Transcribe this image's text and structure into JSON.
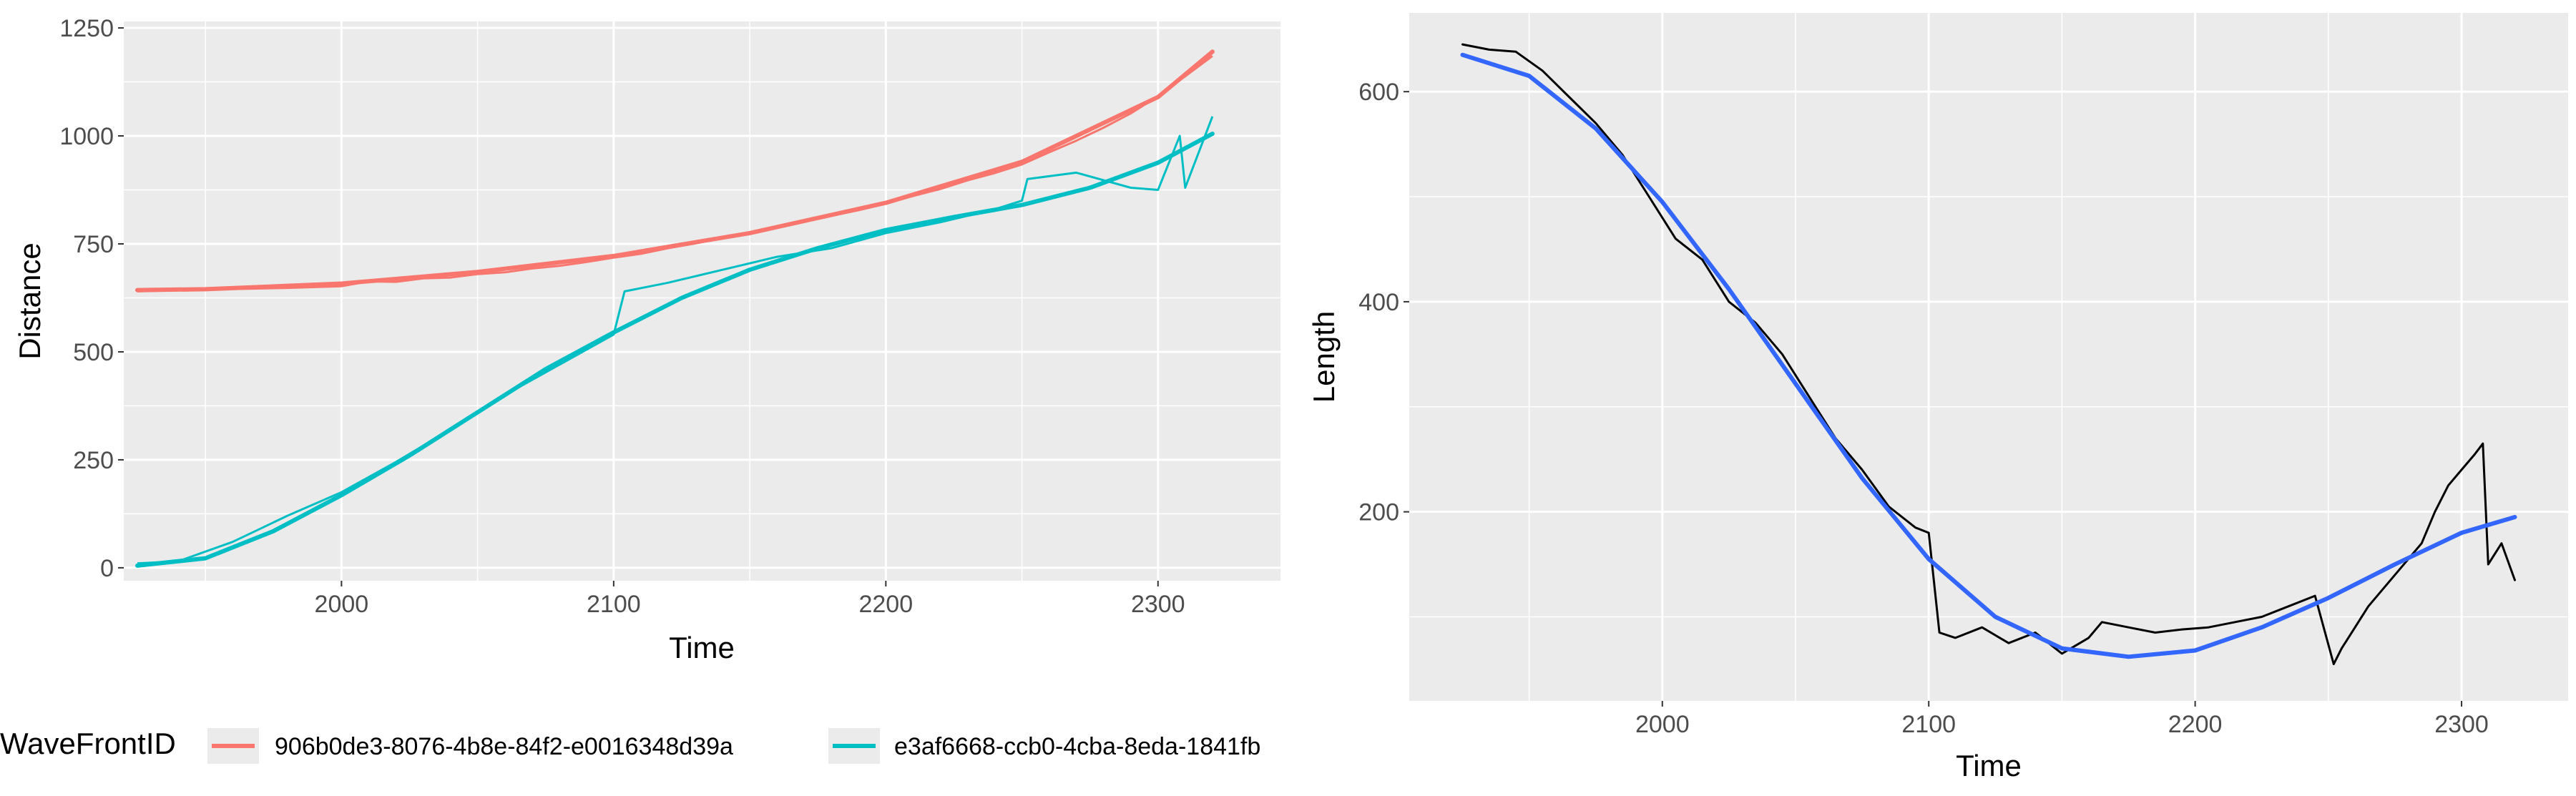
{
  "chart_data": [
    {
      "type": "line",
      "xlabel": "Time",
      "ylabel": "Distance",
      "xlim": [
        1920,
        2345
      ],
      "ylim": [
        -30,
        1265
      ],
      "x_ticks": [
        2000,
        2100,
        2200,
        2300
      ],
      "y_ticks": [
        0,
        250,
        500,
        750,
        1000,
        1250
      ],
      "grid": true,
      "background": "#ebebeb",
      "legend": {
        "title": "WaveFrontID",
        "placement": "bottom",
        "entries": [
          "906b0de3-8076-4b8e-84f2-e0016348d39a",
          "e3af6668-ccb0-4cba-8eda-1841fb"
        ]
      },
      "series": [
        {
          "name": "906b0de3-8076-4b8e-84f2-e0016348d39a",
          "color": "#f8766d",
          "smooth_x": [
            1925,
            1950,
            2000,
            2050,
            2100,
            2150,
            2200,
            2250,
            2300,
            2320
          ],
          "smooth_y": [
            643,
            645,
            658,
            685,
            722,
            775,
            845,
            940,
            1090,
            1195
          ],
          "raw_x": [
            1925,
            1950,
            1980,
            2000,
            2010,
            2020,
            2030,
            2040,
            2050,
            2060,
            2070,
            2080,
            2090,
            2100,
            2110,
            2120,
            2130,
            2140,
            2150,
            2160,
            2170,
            2180,
            2190,
            2200,
            2210,
            2220,
            2230,
            2240,
            2250,
            2260,
            2270,
            2280,
            2290,
            2300,
            2310,
            2320
          ],
          "raw_y": [
            640,
            644,
            648,
            652,
            663,
            662,
            670,
            672,
            680,
            684,
            693,
            699,
            708,
            718,
            727,
            740,
            751,
            765,
            774,
            790,
            803,
            815,
            828,
            843,
            861,
            877,
            897,
            914,
            934,
            962,
            989,
            1019,
            1052,
            1092,
            1138,
            1185
          ]
        },
        {
          "name": "e3af6668-ccb0-4cba-8eda-1841fb",
          "color": "#00bfc4",
          "smooth_x": [
            1925,
            1950,
            1975,
            2000,
            2025,
            2050,
            2075,
            2100,
            2125,
            2150,
            2175,
            2200,
            2225,
            2250,
            2275,
            2300,
            2320
          ],
          "smooth_y": [
            5,
            22,
            85,
            168,
            260,
            360,
            460,
            545,
            625,
            690,
            740,
            782,
            812,
            840,
            880,
            938,
            1005
          ],
          "raw_x": [
            1925,
            1940,
            1960,
            1980,
            2000,
            2020,
            2040,
            2060,
            2080,
            2100,
            2104,
            2120,
            2140,
            2160,
            2180,
            2200,
            2220,
            2240,
            2250,
            2252,
            2270,
            2290,
            2300,
            2308,
            2310,
            2320
          ],
          "raw_y": [
            10,
            15,
            60,
            120,
            175,
            245,
            320,
            400,
            470,
            540,
            640,
            660,
            690,
            720,
            740,
            775,
            800,
            830,
            850,
            900,
            915,
            880,
            875,
            1000,
            880,
            1045
          ]
        }
      ]
    },
    {
      "type": "line",
      "xlabel": "Time",
      "ylabel": "Length",
      "xlim": [
        1905,
        2340
      ],
      "ylim": [
        20,
        675
      ],
      "x_ticks": [
        2000,
        2100,
        2200,
        2300
      ],
      "y_ticks": [
        200,
        400,
        600
      ],
      "grid": true,
      "background": "#ebebeb",
      "series": [
        {
          "color": "#000000",
          "x": [
            1925,
            1935,
            1945,
            1955,
            1965,
            1975,
            1985,
            1995,
            2005,
            2015,
            2025,
            2035,
            2045,
            2055,
            2065,
            2075,
            2085,
            2095,
            2100,
            2104,
            2110,
            2120,
            2130,
            2140,
            2150,
            2160,
            2165,
            2175,
            2185,
            2195,
            2205,
            2215,
            2225,
            2235,
            2245,
            2252,
            2255,
            2260,
            2265,
            2275,
            2285,
            2290,
            2295,
            2300,
            2305,
            2308,
            2310,
            2315,
            2320
          ],
          "y": [
            645,
            640,
            638,
            620,
            595,
            570,
            540,
            500,
            460,
            440,
            400,
            380,
            350,
            310,
            270,
            240,
            205,
            185,
            180,
            85,
            80,
            90,
            75,
            85,
            65,
            80,
            95,
            90,
            85,
            88,
            90,
            95,
            100,
            110,
            120,
            55,
            70,
            90,
            110,
            140,
            170,
            200,
            225,
            240,
            255,
            265,
            150,
            170,
            135
          ]
        },
        {
          "color": "#3366ff",
          "x": [
            1925,
            1950,
            1975,
            2000,
            2025,
            2050,
            2075,
            2100,
            2125,
            2150,
            2175,
            2200,
            2225,
            2250,
            2275,
            2300,
            2320
          ],
          "y": [
            635,
            615,
            565,
            495,
            412,
            322,
            232,
            155,
            100,
            70,
            62,
            68,
            90,
            118,
            150,
            180,
            195
          ]
        }
      ]
    }
  ]
}
